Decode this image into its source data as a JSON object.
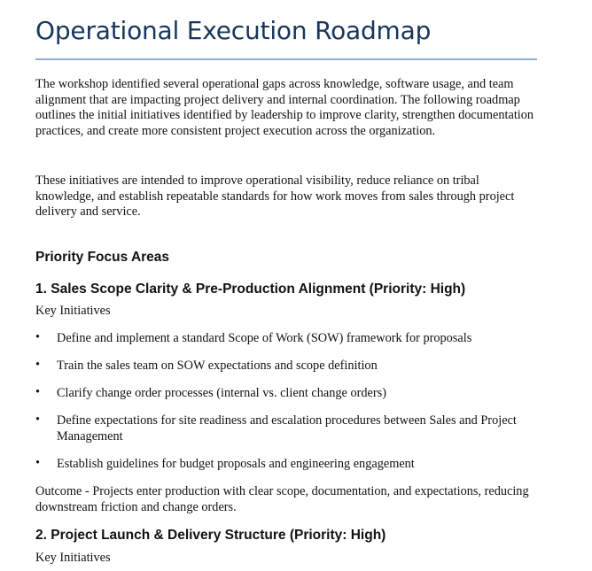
{
  "title": "Operational Execution Roadmap",
  "intro": [
    "The workshop identified several operational gaps across knowledge, software usage, and team alignment that are impacting project delivery and internal coordination. The following roadmap outlines the initial initiatives identified by leadership to improve clarity, strengthen documentation practices, and create more consistent project execution across the organization.",
    "These initiatives are intended to improve operational visibility, reduce reliance on tribal knowledge, and establish repeatable standards for how work moves from sales through project delivery and service."
  ],
  "focus_heading": "Priority Focus Areas",
  "sections": [
    {
      "heading": "1. Sales Scope Clarity & Pre-Production Alignment (Priority: High)",
      "subheading": "Key Initiatives",
      "bullets": [
        "Define and implement a standard Scope of Work (SOW) framework for proposals",
        "Train the sales team on SOW expectations and scope definition",
        "Clarify change order processes (internal vs. client change orders)",
        "Define expectations for site readiness and escalation procedures between Sales and Project Management",
        "Establish guidelines for budget proposals and engineering engagement"
      ],
      "outcome": "Outcome - Projects enter production with clear scope, documentation, and expectations, reducing downstream friction and change orders."
    },
    {
      "heading": "2. Project Launch & Delivery Structure (Priority: High)",
      "subheading": "Key Initiatives"
    }
  ]
}
